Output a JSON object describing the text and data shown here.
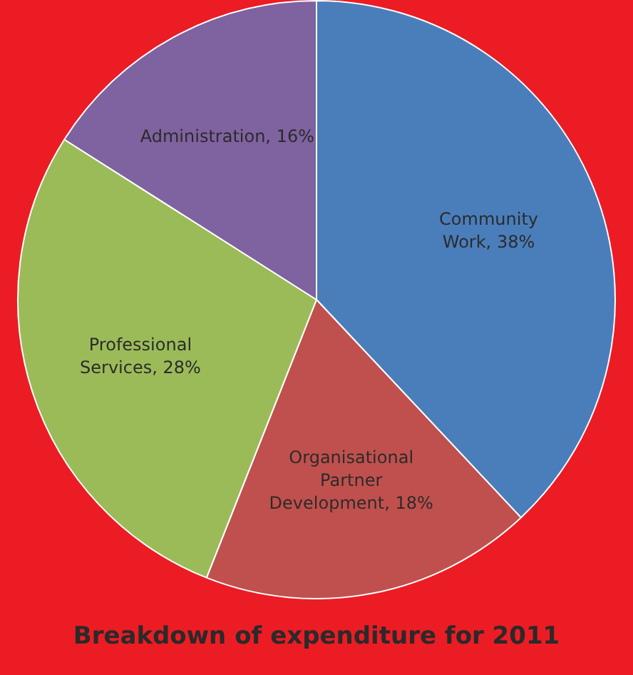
{
  "chart_data": {
    "type": "pie",
    "title": "Breakdown of expenditure for 2011",
    "categories": [
      "Community Work",
      "Organisational Partner Development",
      "Professional Services",
      "Administration"
    ],
    "values": [
      38,
      18,
      28,
      16
    ],
    "colors": [
      "#4a7ebb",
      "#c0504d",
      "#9bbb59",
      "#7f62a0"
    ],
    "value_labels": [
      "38%",
      "18%",
      "28%",
      "16%"
    ]
  }
}
